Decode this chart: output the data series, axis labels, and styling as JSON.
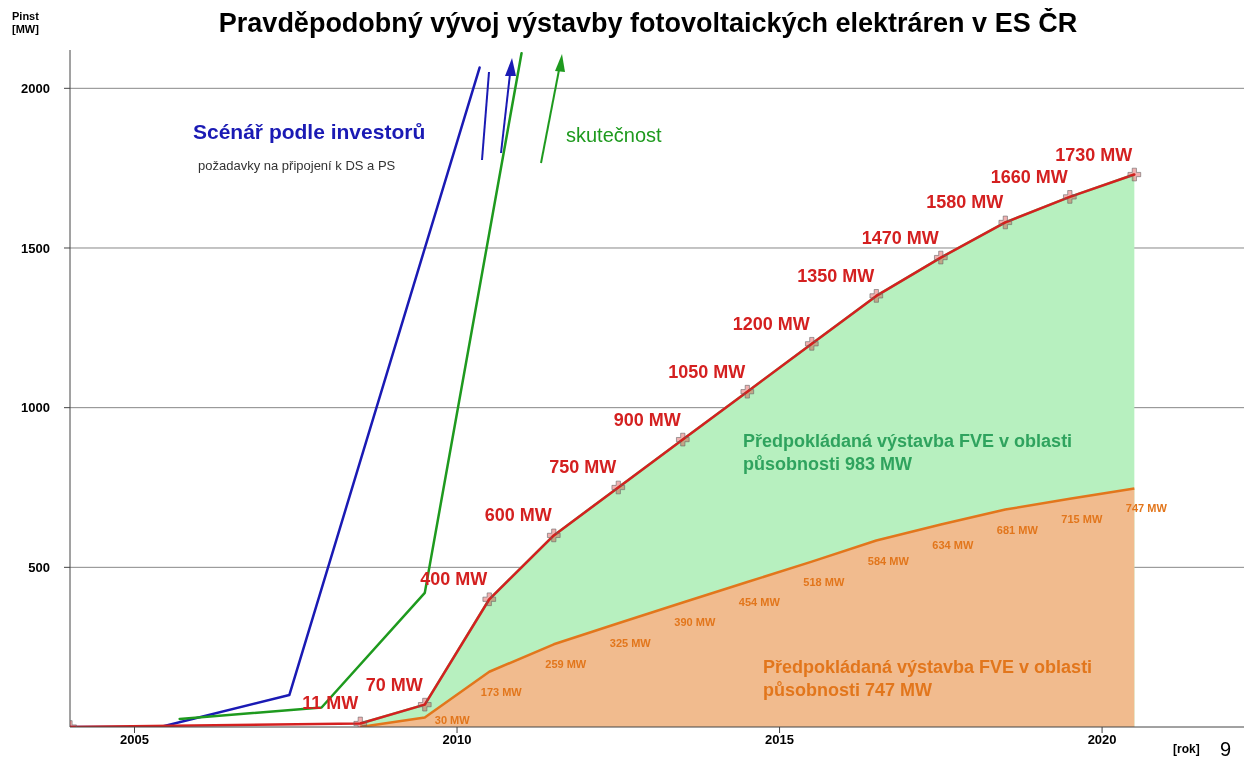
{
  "chart_data": {
    "type": "line",
    "title": "Pravděpodobný vývoj výstavby fotovoltaických elektráren v ES ČR",
    "ylabel": "Pinst [MW]",
    "xlabel": "[rok]",
    "xlim": [
      2004,
      2022.2
    ],
    "xticks": [
      2005,
      2010,
      2015,
      2020
    ],
    "ylim": [
      0,
      2120
    ],
    "yticks": [
      500,
      1000,
      1500,
      2000
    ],
    "grid": "y",
    "annotations": [
      "požadavky na připojení k DS a PS",
      "Předpokládaná výstavba FVE v oblasti působnosti 983 MW",
      "Předpokládaná výstavba FVE v oblasti působnosti 747 MW",
      "9"
    ],
    "series": [
      {
        "type": "area",
        "color": "#6fe07f",
        "x": [
          2008.5,
          2009.5,
          2010.5,
          2011.5,
          2012.5,
          2013.5,
          2014.5,
          2015.5,
          2016.5,
          2017.5,
          2018.5,
          2019.5,
          2020.5
        ],
        "values": [
          11,
          70,
          400,
          600,
          750,
          900,
          1050,
          1200,
          1350,
          1470,
          1580,
          1660,
          1730
        ]
      },
      {
        "name": "Scénář podle investorů",
        "color": "#1a1ab4",
        "x": [
          2004,
          2005.4,
          2007.4,
          2010.35
        ],
        "values": [
          0,
          0,
          100,
          2065
        ]
      },
      {
        "name": "skutečnost",
        "color": "#1e9a1e",
        "x": [
          2005.7,
          2007.9,
          2009.5,
          2011.0
        ],
        "values": [
          25,
          61,
          420,
          2110
        ]
      },
      {
        "color": "#d42020",
        "marker": "cross",
        "x": [
          2004,
          2008.5,
          2009.5,
          2010.5,
          2011.5,
          2012.5,
          2013.5,
          2014.5,
          2015.5,
          2016.5,
          2017.5,
          2018.5,
          2019.5,
          2020.5
        ],
        "values": [
          0,
          11,
          70,
          400,
          600,
          750,
          900,
          1050,
          1200,
          1350,
          1470,
          1580,
          1660,
          1730
        ],
        "value_labels": [
          null,
          "11 MW",
          "70 MW",
          "400 MW",
          "600 MW",
          "750 MW",
          "900 MW",
          "1050 MW",
          "1200 MW",
          "1350 MW",
          "1470 MW",
          "1580 MW",
          "1660 MW",
          "1730 MW"
        ]
      },
      {
        "type": "area",
        "color": "#e2761c",
        "x": [
          2008.5,
          2009.5,
          2010.5,
          2011.5,
          2012.5,
          2013.5,
          2014.5,
          2015.5,
          2016.5,
          2017.5,
          2018.5,
          2019.5,
          2020.5
        ],
        "values": [
          0,
          30,
          173,
          259,
          325,
          390,
          454,
          518,
          584,
          634,
          681,
          715,
          747
        ],
        "value_labels": [
          null,
          "30 MW",
          "173 MW",
          "259 MW",
          "325 MW",
          "390 MW",
          "454 MW",
          "518 MW",
          "584 MW",
          "634 MW",
          "681 MW",
          "715 MW",
          "747 MW"
        ]
      }
    ]
  }
}
